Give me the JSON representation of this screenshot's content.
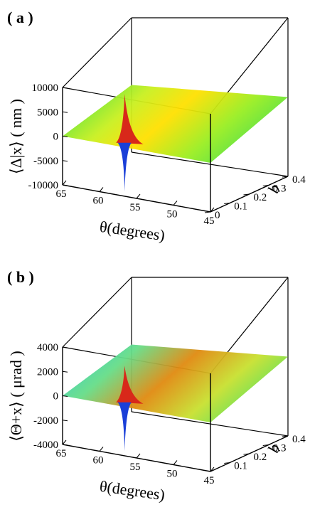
{
  "panels": [
    {
      "label": "( a )",
      "chart_data": {
        "type": "surface",
        "xlabel": "θ(degrees)",
        "ylabel": "b",
        "zlabel": "⟨Δ|x⟩ ( nm )",
        "x_ticks": [
          "65",
          "60",
          "55",
          "50",
          "45"
        ],
        "x_range": [
          65,
          45
        ],
        "y_ticks": [
          "0",
          "0.1",
          "0.2",
          "0.3",
          "0.4"
        ],
        "y_range": [
          0,
          0.4
        ],
        "z_ticks": [
          "10000",
          "5000",
          "0",
          "-5000",
          "-10000"
        ],
        "z_range": [
          -10000,
          10000
        ],
        "features": [
          {
            "kind": "peak",
            "theta": 57,
            "b": 0.0,
            "z": 10000
          },
          {
            "kind": "dip",
            "theta": 57,
            "b": 0.0,
            "z": -10000
          }
        ],
        "baseline_z": 0
      }
    },
    {
      "label": "( b )",
      "chart_data": {
        "type": "surface",
        "xlabel": "θ(degrees)",
        "ylabel": "b",
        "zlabel": "⟨Θ+x⟩ ( μrad )",
        "x_ticks": [
          "65",
          "60",
          "55",
          "50",
          "45"
        ],
        "x_range": [
          65,
          45
        ],
        "y_ticks": [
          "0.1",
          "0.2",
          "0.3",
          "0.4"
        ],
        "y_range": [
          0,
          0.4
        ],
        "z_ticks": [
          "4000",
          "2000",
          "0",
          "-2000",
          "-4000"
        ],
        "z_range": [
          -4000,
          4000
        ],
        "features": [
          {
            "kind": "peak",
            "theta": 57,
            "b": 0.0,
            "z": 3000
          },
          {
            "kind": "dip",
            "theta": 57,
            "b": 0.0,
            "z": -4000
          }
        ],
        "baseline_z": 0
      }
    }
  ]
}
